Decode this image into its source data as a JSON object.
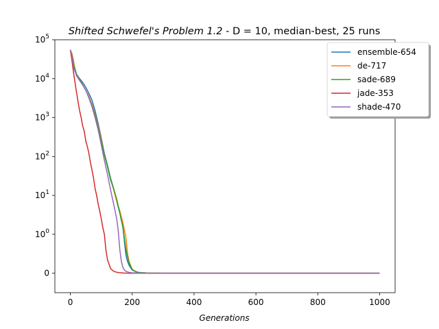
{
  "chart_data": {
    "type": "line",
    "title": {
      "italic_part": "Shifted Schwefel's Problem 1.2",
      "plain_part": "  - D = 10, median-best, 25 runs"
    },
    "xlabel": "Generations",
    "ylabel": "",
    "xlim": [
      -50,
      1050
    ],
    "xticks": [
      0,
      200,
      400,
      600,
      800,
      1000
    ],
    "y_scale": "symlog",
    "y_linthresh": 1,
    "ylim": [
      -0.5,
      100000
    ],
    "yticks": [
      {
        "value": 0,
        "label": "0"
      },
      {
        "value": 1,
        "label": "10^0"
      },
      {
        "value": 10,
        "label": "10^1"
      },
      {
        "value": 100,
        "label": "10^2"
      },
      {
        "value": 1000,
        "label": "10^3"
      },
      {
        "value": 10000,
        "label": "10^4"
      },
      {
        "value": 100000,
        "label": "10^5"
      }
    ],
    "grid": false,
    "legend_position": "upper-right",
    "series": [
      {
        "name": "ensemble-654",
        "color": "#1f77b4",
        "x": [
          0,
          5,
          10,
          20,
          30,
          40,
          50,
          60,
          70,
          80,
          90,
          100,
          110,
          120,
          130,
          140,
          150,
          160,
          170,
          175,
          180,
          185,
          190,
          200,
          220,
          250,
          300,
          400,
          600,
          800,
          1000
        ],
        "y": [
          55000,
          42000,
          25000,
          13000,
          10000,
          8000,
          6000,
          4200,
          2800,
          1500,
          700,
          300,
          120,
          60,
          28,
          15,
          7,
          3.5,
          1.5,
          0.8,
          0.45,
          0.3,
          0.2,
          0.08,
          0.02,
          0.005,
          0,
          0,
          0,
          0,
          0
        ]
      },
      {
        "name": "de-717",
        "color": "#ff7f0e",
        "x": [
          0,
          5,
          10,
          15,
          20,
          30,
          40,
          50,
          60,
          70,
          80,
          90,
          100,
          110,
          120,
          130,
          140,
          150,
          160,
          170,
          180,
          185,
          190,
          200,
          210,
          220,
          250,
          300,
          400,
          600,
          800,
          1000
        ],
        "y": [
          55000,
          45000,
          30000,
          17000,
          12000,
          9000,
          6800,
          5000,
          3500,
          2200,
          1200,
          600,
          280,
          110,
          55,
          26,
          14,
          7,
          4,
          2,
          0.9,
          0.5,
          0.3,
          0.1,
          0.05,
          0.02,
          0.005,
          0,
          0,
          0,
          0,
          0
        ]
      },
      {
        "name": "sade-689",
        "color": "#2ca02c",
        "x": [
          0,
          5,
          10,
          20,
          30,
          40,
          50,
          60,
          70,
          80,
          90,
          100,
          110,
          120,
          130,
          140,
          150,
          160,
          170,
          180,
          190,
          200,
          210,
          220,
          250,
          300,
          400,
          600,
          800,
          1000
        ],
        "y": [
          55000,
          40000,
          24000,
          13000,
          9500,
          7000,
          5000,
          3300,
          2000,
          1100,
          550,
          250,
          110,
          55,
          25,
          15,
          8,
          3.5,
          1.5,
          0.6,
          0.25,
          0.1,
          0.04,
          0.02,
          0.005,
          0,
          0,
          0,
          0,
          0
        ]
      },
      {
        "name": "jade-353",
        "color": "#d62728",
        "x": [
          0,
          5,
          10,
          15,
          20,
          25,
          30,
          35,
          40,
          45,
          50,
          55,
          60,
          65,
          70,
          75,
          80,
          85,
          90,
          95,
          100,
          105,
          110,
          115,
          120,
          130,
          140,
          150,
          160,
          170,
          180,
          200,
          250,
          300,
          400,
          600,
          800,
          1000
        ],
        "y": [
          55000,
          30000,
          15000,
          8000,
          4500,
          2500,
          1500,
          1000,
          600,
          450,
          250,
          180,
          120,
          70,
          45,
          28,
          15,
          10,
          6,
          4,
          2.5,
          1.5,
          1.0,
          0.6,
          0.35,
          0.12,
          0.05,
          0.025,
          0.012,
          0.006,
          0.003,
          0,
          0,
          0,
          0,
          0,
          0,
          0
        ]
      },
      {
        "name": "shade-470",
        "color": "#9467bd",
        "x": [
          0,
          5,
          10,
          20,
          30,
          40,
          50,
          60,
          70,
          80,
          90,
          100,
          110,
          120,
          130,
          140,
          150,
          155,
          160,
          165,
          170,
          175,
          180,
          190,
          200,
          220,
          250,
          300,
          400,
          600,
          800,
          1000
        ],
        "y": [
          55000,
          38000,
          20000,
          12000,
          9000,
          7000,
          5000,
          3200,
          1900,
          1000,
          480,
          200,
          80,
          35,
          14,
          6,
          2.5,
          1.2,
          0.6,
          0.3,
          0.15,
          0.08,
          0.05,
          0.02,
          0.01,
          0.005,
          0,
          0,
          0,
          0,
          0,
          0
        ]
      }
    ]
  }
}
